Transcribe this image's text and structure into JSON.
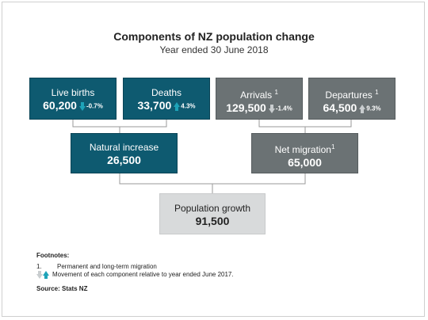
{
  "title": "Components of NZ population change",
  "subtitle": "Year ended 30 June 2018",
  "boxes": {
    "live_births": {
      "label": "Live births",
      "value": "60,200",
      "change": "-0.7%",
      "direction": "down"
    },
    "deaths": {
      "label": "Deaths",
      "value": "33,700",
      "change": "4.3%",
      "direction": "up"
    },
    "arrivals": {
      "label": "Arrivals",
      "sup": "1",
      "value": "129,500",
      "change": "-1.4%",
      "direction": "down"
    },
    "departures": {
      "label": "Departures",
      "sup": "1",
      "value": "64,500",
      "change": "9.3%",
      "direction": "up"
    },
    "natural_increase": {
      "label": "Natural increase",
      "value": "26,500"
    },
    "net_migration": {
      "label": "Net migration",
      "sup": "1",
      "value": "65,000"
    },
    "population_growth": {
      "label": "Population growth",
      "value": "91,500"
    }
  },
  "colors": {
    "natural": "#0e5a70",
    "migration": "#6b7274",
    "total": "#d8dadb",
    "arrow_natural": "#1ea3b8",
    "arrow_migration": "#c9cdcf"
  },
  "footnotes": {
    "heading": "Footnotes:",
    "note1_marker": "1.",
    "note1": "Permanent and long-term migration",
    "note2": "Movement of each component relative to year ended June 2017.",
    "source": "Source: Stats NZ"
  }
}
